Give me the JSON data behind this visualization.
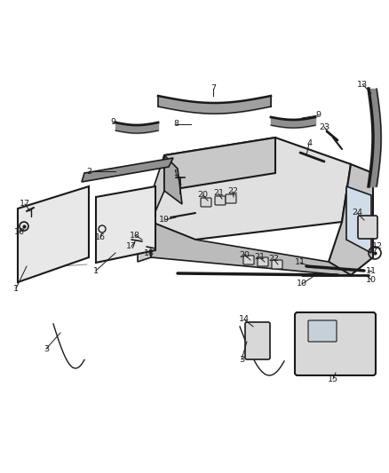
{
  "bg_color": "#ffffff",
  "dark": "#1a1a1a",
  "gray": "#777777",
  "light_gray": "#d8d8d8",
  "mid_gray": "#b8b8b8",
  "figsize": [
    4.38,
    5.33
  ],
  "dpi": 100
}
